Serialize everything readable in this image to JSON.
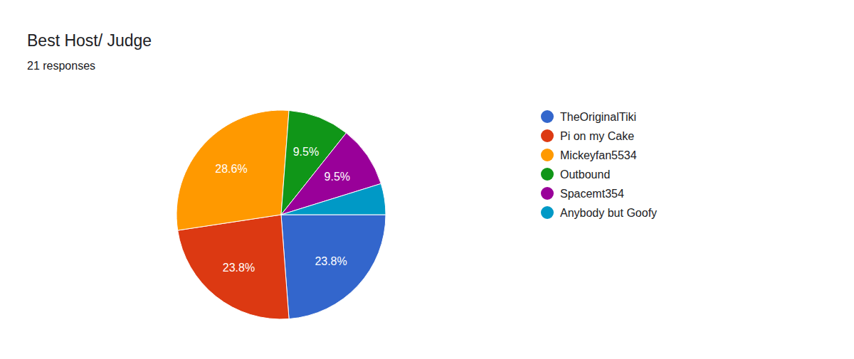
{
  "chart_data": {
    "type": "pie",
    "title": "Best Host/ Judge",
    "subtitle": "21 responses",
    "categories": [
      "TheOriginalTiki",
      "Pi on my Cake",
      "Mickeyfan5534",
      "Outbound",
      "Spacemt354",
      "Anybody but Goofy"
    ],
    "values": [
      23.8,
      23.8,
      28.6,
      9.5,
      9.5,
      4.8
    ],
    "value_labels": [
      "23.8%",
      "23.8%",
      "28.6%",
      "9.5%",
      "9.5%",
      null
    ],
    "colors": [
      "#3366cc",
      "#dc3912",
      "#ff9900",
      "#109618",
      "#990099",
      "#0099c6"
    ],
    "data_labels": true,
    "legend": "right"
  }
}
